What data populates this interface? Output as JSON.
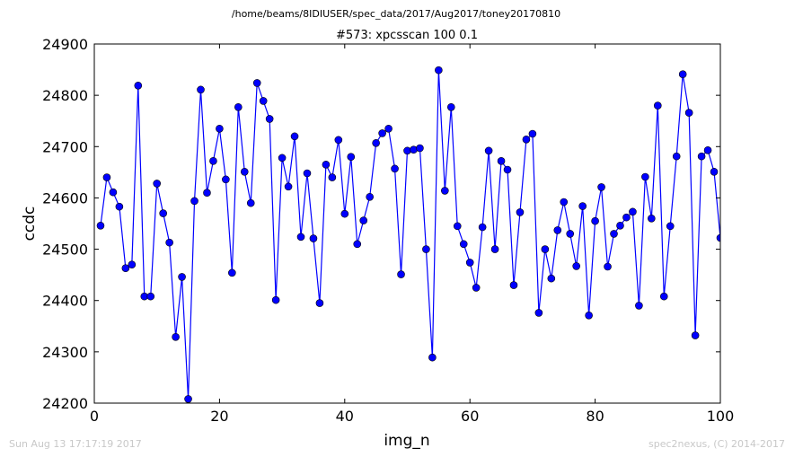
{
  "header": {
    "path": "/home/beams/8IDIUSER/spec_data/2017/Aug2017/toney20170810"
  },
  "footer": {
    "left": "Sun Aug 13 17:17:19 2017",
    "right": "spec2nexus, (C) 2014-2017"
  },
  "chart_data": {
    "type": "line",
    "title": "#573: xpcsscan 100 0.1",
    "xlabel": "img_n",
    "ylabel": "ccdc",
    "xlim": [
      0,
      100
    ],
    "ylim": [
      24200,
      24900
    ],
    "xticks": [
      0,
      20,
      40,
      60,
      80,
      100
    ],
    "yticks": [
      24200,
      24300,
      24400,
      24500,
      24600,
      24700,
      24800,
      24900
    ],
    "grid": false,
    "legend": "none",
    "line_color": "#0000ff",
    "marker": "circle",
    "x": [
      1,
      2,
      3,
      4,
      5,
      6,
      7,
      8,
      9,
      10,
      11,
      12,
      13,
      14,
      15,
      16,
      17,
      18,
      19,
      20,
      21,
      22,
      23,
      24,
      25,
      26,
      27,
      28,
      29,
      30,
      31,
      32,
      33,
      34,
      35,
      36,
      37,
      38,
      39,
      40,
      41,
      42,
      43,
      44,
      45,
      46,
      47,
      48,
      49,
      50,
      51,
      52,
      53,
      54,
      55,
      56,
      57,
      58,
      59,
      60,
      61,
      62,
      63,
      64,
      65,
      66,
      67,
      68,
      69,
      70,
      71,
      72,
      73,
      74,
      75,
      76,
      77,
      78,
      79,
      80,
      81,
      82,
      83,
      84,
      85,
      86,
      87,
      88,
      89,
      90,
      91,
      92,
      93,
      94,
      95,
      96,
      97,
      98,
      99,
      100
    ],
    "y": [
      24546,
      24640,
      24611,
      24583,
      24463,
      24470,
      24819,
      24408,
      24408,
      24628,
      24570,
      24513,
      24329,
      24446,
      24208,
      24594,
      24811,
      24610,
      24672,
      24735,
      24636,
      24454,
      24777,
      24651,
      24590,
      24824,
      24789,
      24754,
      24401,
      24678,
      24622,
      24720,
      24524,
      24648,
      24521,
      24395,
      24665,
      24640,
      24713,
      24569,
      24680,
      24510,
      24556,
      24602,
      24707,
      24726,
      24735,
      24657,
      24451,
      24692,
      24694,
      24697,
      24500,
      24289,
      24849,
      24614,
      24777,
      24545,
      24510,
      24474,
      24425,
      24543,
      24692,
      24500,
      24672,
      24655,
      24430,
      24572,
      24714,
      24725,
      24376,
      24500,
      24443,
      24537,
      24592,
      24530,
      24467,
      24584,
      24371,
      24555,
      24621,
      24466,
      24530,
      24546,
      24562,
      24573,
      24390,
      24641,
      24560,
      24780,
      24408,
      24545,
      24681,
      24841,
      24766,
      24332,
      24681,
      24693,
      24651,
      24522
    ]
  }
}
